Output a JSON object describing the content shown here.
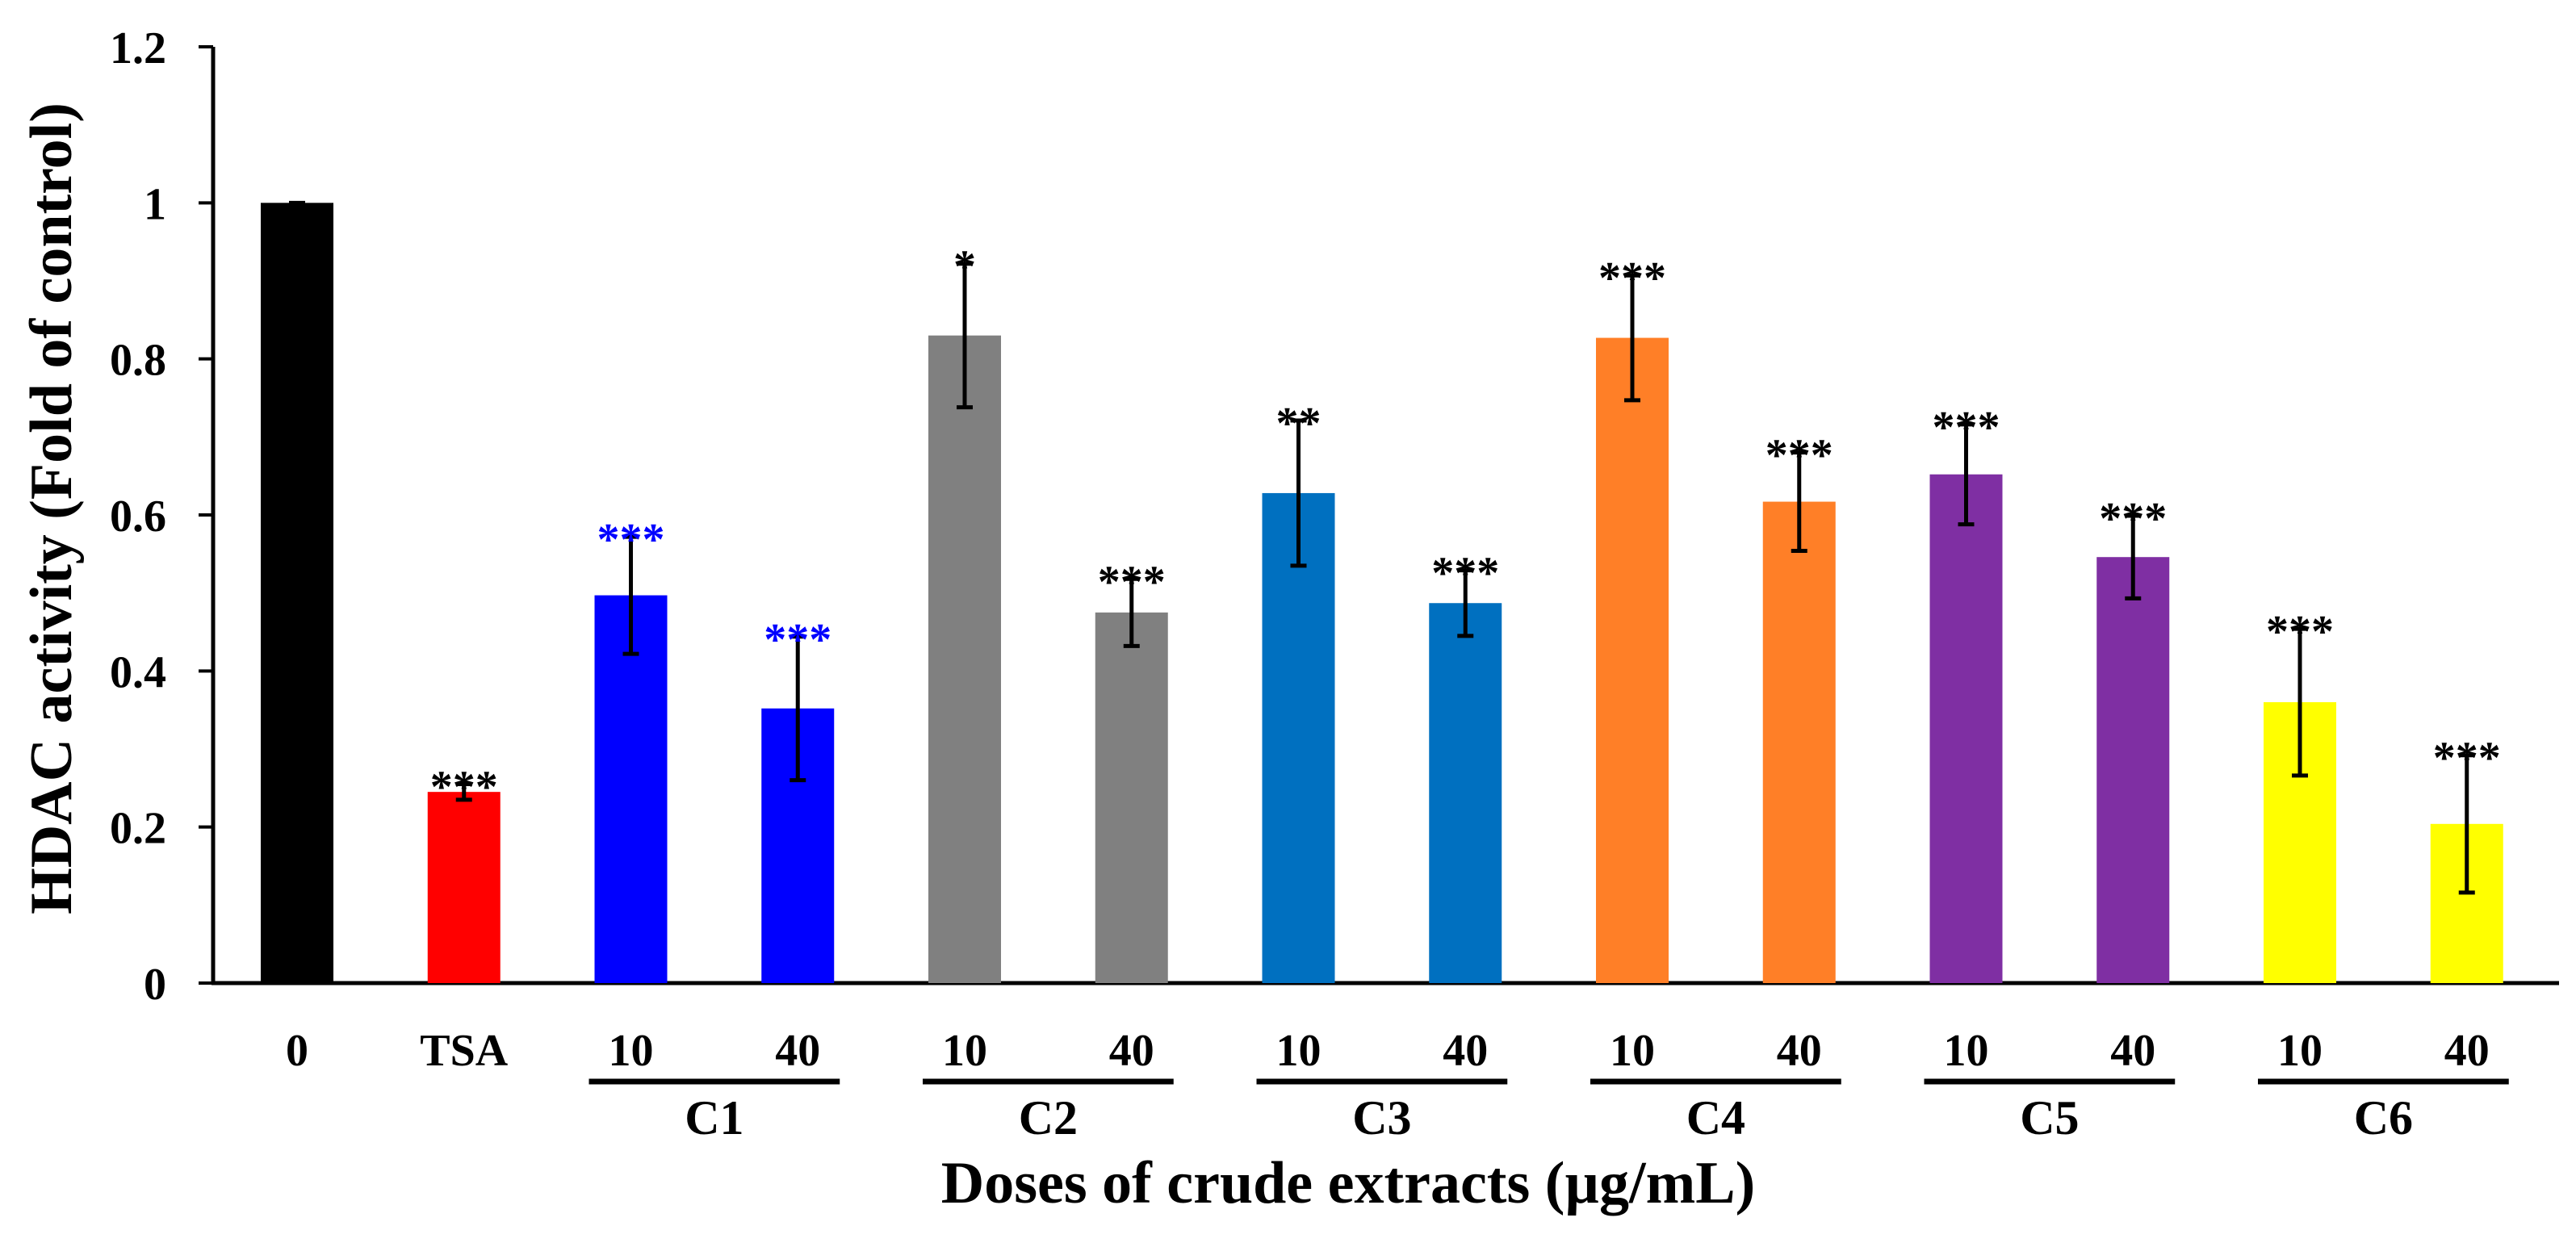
{
  "chart_data": {
    "type": "bar",
    "title": "",
    "ylabel": "HDAC activity (Fold of control)",
    "xlabel": "Doses of crude extracts (µg/mL)",
    "ylim": [
      0,
      1.2
    ],
    "yticks": [
      {
        "value": 0,
        "label": "0"
      },
      {
        "value": 0.2,
        "label": "0.2"
      },
      {
        "value": 0.4,
        "label": "0.4"
      },
      {
        "value": 0.6,
        "label": "0.6"
      },
      {
        "value": 0.8,
        "label": "0.8"
      },
      {
        "value": 1,
        "label": "1"
      },
      {
        "value": 1.2,
        "label": "1.2"
      }
    ],
    "bars": [
      {
        "id": "control",
        "category": "0",
        "value": 1.0,
        "error": 0.0,
        "color": "#000000",
        "sig": "",
        "sig_color": "#000000"
      },
      {
        "id": "tsa",
        "category": "TSA",
        "value": 0.245,
        "error": 0.01,
        "color": "#ff0000",
        "sig": "***",
        "sig_color": "#000000"
      },
      {
        "id": "c1-10",
        "category": "10",
        "value": 0.497,
        "error": 0.075,
        "color": "#0000ff",
        "sig": "***",
        "sig_color": "#0000ff"
      },
      {
        "id": "c1-40",
        "category": "40",
        "value": 0.352,
        "error": 0.092,
        "color": "#0000ff",
        "sig": "***",
        "sig_color": "#0000ff"
      },
      {
        "id": "c2-10",
        "category": "10",
        "value": 0.83,
        "error": 0.092,
        "color": "#808080",
        "sig": "*",
        "sig_color": "#000000"
      },
      {
        "id": "c2-40",
        "category": "40",
        "value": 0.475,
        "error": 0.043,
        "color": "#808080",
        "sig": "***",
        "sig_color": "#000000"
      },
      {
        "id": "c3-10",
        "category": "10",
        "value": 0.628,
        "error": 0.093,
        "color": "#0070c0",
        "sig": "**",
        "sig_color": "#000000"
      },
      {
        "id": "c3-40",
        "category": "40",
        "value": 0.487,
        "error": 0.042,
        "color": "#0070c0",
        "sig": "***",
        "sig_color": "#000000"
      },
      {
        "id": "c4-10",
        "category": "10",
        "value": 0.827,
        "error": 0.08,
        "color": "#ff7f27",
        "sig": "***",
        "sig_color": "#000000"
      },
      {
        "id": "c4-40",
        "category": "40",
        "value": 0.617,
        "error": 0.063,
        "color": "#ff7f27",
        "sig": "***",
        "sig_color": "#000000"
      },
      {
        "id": "c5-10",
        "category": "10",
        "value": 0.652,
        "error": 0.064,
        "color": "#7f2fa3",
        "sig": "***",
        "sig_color": "#000000"
      },
      {
        "id": "c5-40",
        "category": "40",
        "value": 0.546,
        "error": 0.053,
        "color": "#7f2fa3",
        "sig": "***",
        "sig_color": "#000000"
      },
      {
        "id": "c6-10",
        "category": "10",
        "value": 0.36,
        "error": 0.094,
        "color": "#ffff00",
        "sig": "***",
        "sig_color": "#000000"
      },
      {
        "id": "c6-40",
        "category": "40",
        "value": 0.204,
        "error": 0.088,
        "color": "#ffff00",
        "sig": "***",
        "sig_color": "#000000"
      }
    ],
    "groups": [
      {
        "label": "C1",
        "bars": [
          "c1-10",
          "c1-40"
        ]
      },
      {
        "label": "C2",
        "bars": [
          "c2-10",
          "c2-40"
        ]
      },
      {
        "label": "C3",
        "bars": [
          "c3-10",
          "c3-40"
        ]
      },
      {
        "label": "C4",
        "bars": [
          "c4-10",
          "c4-40"
        ]
      },
      {
        "label": "C5",
        "bars": [
          "c5-10",
          "c5-40"
        ]
      },
      {
        "label": "C6",
        "bars": [
          "c6-10",
          "c6-40"
        ]
      }
    ]
  }
}
